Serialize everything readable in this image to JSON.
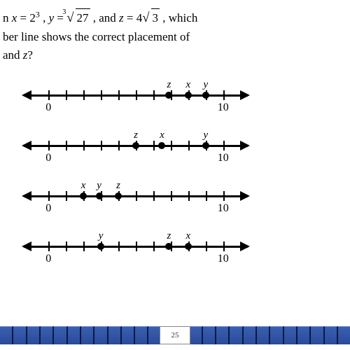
{
  "question": {
    "line1_prefix": "n ",
    "x_lhs": "x",
    "x_eq": " = 2",
    "x_exp": "3",
    "sep1": " ,  ",
    "y_lhs": "y",
    "y_eq": " = ",
    "cbrt_index": "3",
    "cbrt_radicand": "27",
    "sep2": " , and ",
    "z_lhs": "z",
    "z_eq": " = 4",
    "sqrt_radicand": "3",
    "line1_suffix": " , which",
    "line2": "ber line shows the correct placement of",
    "line3_prefix": "and ",
    "line3_var": "z",
    "line3_suffix": "?"
  },
  "axis": {
    "zero_label": "0",
    "ten_label": "10",
    "x0_pct": 11,
    "x10_pct": 89,
    "tick_positions_pct": [
      11,
      18.8,
      26.6,
      34.4,
      42.2,
      50,
      57.8,
      65.6,
      73.4,
      81.2,
      89
    ]
  },
  "lines": [
    {
      "points": [
        {
          "label": "z",
          "val": 6.9
        },
        {
          "label": "x",
          "val": 8
        },
        {
          "label": "y",
          "val": 9
        }
      ]
    },
    {
      "points": [
        {
          "label": "z",
          "val": 5
        },
        {
          "label": "x",
          "val": 6.5
        },
        {
          "label": "y",
          "val": 9
        }
      ]
    },
    {
      "points": [
        {
          "label": "x",
          "val": 2
        },
        {
          "label": "y",
          "val": 2.9
        },
        {
          "label": "z",
          "val": 4
        }
      ]
    },
    {
      "points": [
        {
          "label": "y",
          "val": 3
        },
        {
          "label": "z",
          "val": 6.9
        },
        {
          "label": "x",
          "val": 8
        }
      ]
    }
  ],
  "footer": {
    "page": "25",
    "segments": 26
  },
  "colors": {
    "text": "#000000",
    "bg": "#ffffff",
    "bar_top": "#3b5fb0",
    "bar_bottom": "#2a4a9a"
  }
}
